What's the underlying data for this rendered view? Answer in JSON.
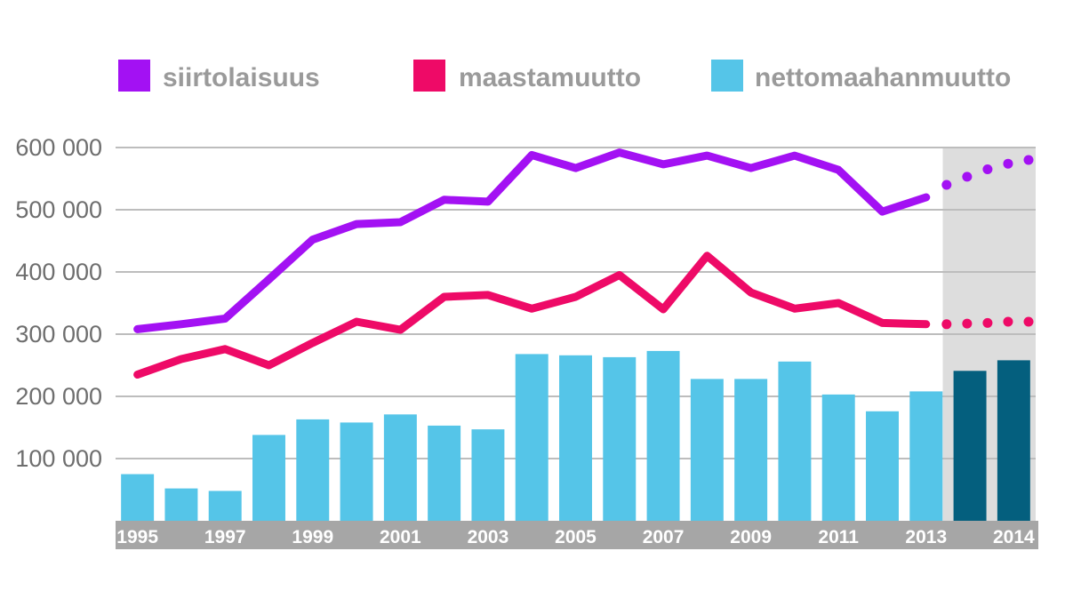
{
  "chart_data": {
    "type": "bar+line",
    "x": [
      "1995",
      "1996",
      "1997",
      "1998",
      "1999",
      "2000",
      "2001",
      "2002",
      "2003",
      "2004",
      "2005",
      "2006",
      "2007",
      "2008",
      "2009",
      "2010",
      "2011",
      "2012",
      "2013",
      "2014a",
      "2014"
    ],
    "xtick_labels": [
      "1995",
      "1997",
      "1999",
      "2001",
      "2003",
      "2005",
      "2007",
      "2009",
      "2011",
      "2013",
      "2014"
    ],
    "xtick_indices": [
      0,
      2,
      4,
      6,
      8,
      10,
      12,
      14,
      16,
      18,
      20
    ],
    "ylim": [
      0,
      600000
    ],
    "yticks": [
      100000,
      200000,
      300000,
      400000,
      500000,
      600000
    ],
    "ytick_labels": [
      "100 000",
      "200 000",
      "300 000",
      "400 000",
      "500 000",
      "600 000"
    ],
    "grid": true,
    "legend_position": "top",
    "forecast_start_index": 19,
    "series": [
      {
        "name": "siirtolaisuus",
        "kind": "line",
        "color": "#a311f3",
        "values": [
          308000,
          316000,
          325000,
          388000,
          452000,
          477000,
          480000,
          516000,
          513000,
          588000,
          567000,
          592000,
          573000,
          587000,
          567000,
          587000,
          564000,
          497000,
          520000,
          null,
          null
        ],
        "forecast_values": [
          540000,
          553000,
          565000,
          574000,
          580000
        ]
      },
      {
        "name": "maastamuutto",
        "kind": "line",
        "color": "#ee0a67",
        "values": [
          235000,
          260000,
          276000,
          250000,
          286000,
          320000,
          307000,
          360000,
          363000,
          341000,
          360000,
          395000,
          340000,
          426000,
          367000,
          341000,
          350000,
          318000,
          316000,
          null,
          null
        ],
        "forecast_values": [
          316000,
          317000,
          318000,
          320000,
          320000
        ]
      },
      {
        "name": "nettomaahanmuutto",
        "kind": "bar",
        "color": "#55c5e8",
        "forecast_color": "#045f7e",
        "values": [
          75000,
          52000,
          48000,
          138000,
          163000,
          158000,
          171000,
          153000,
          147000,
          268000,
          266000,
          263000,
          273000,
          228000,
          228000,
          256000,
          203000,
          176000,
          208000,
          241000,
          258000
        ]
      }
    ]
  },
  "colors": {
    "forecast_background": "#dddddd",
    "grid": "#bdbdbd",
    "axis_band": "#a6a6a6"
  }
}
